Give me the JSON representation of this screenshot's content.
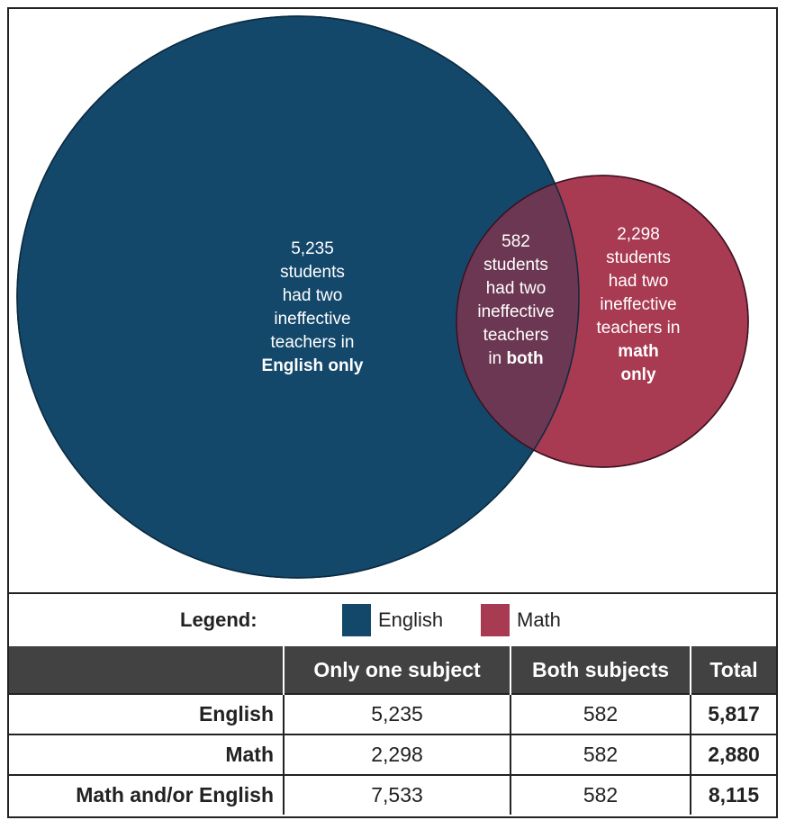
{
  "colors": {
    "english": "#13486b",
    "math": "#a83a52",
    "overlap": "#6c3752",
    "header_bg": "#424242"
  },
  "venn": {
    "english_only": {
      "count": "5,235",
      "line1": "students",
      "line2": "had two",
      "line3": "ineffective",
      "line4": "teachers in",
      "emphasis": "English only"
    },
    "both": {
      "count": "582",
      "line1": "students",
      "line2": "had two",
      "line3": "ineffective",
      "line4": "teachers",
      "prefix": "in",
      "emphasis": "both"
    },
    "math_only": {
      "count": "2,298",
      "line1": "students",
      "line2": "had two",
      "line3": "ineffective",
      "line4": "teachers in",
      "emphasis_line1": "math",
      "emphasis_line2": "only"
    }
  },
  "legend": {
    "label": "Legend:",
    "items": [
      {
        "label": "English",
        "icon": "square-swatch"
      },
      {
        "label": "Math",
        "icon": "square-swatch"
      }
    ]
  },
  "table": {
    "headers": [
      "",
      "Only one subject",
      "Both subjects",
      "Total"
    ],
    "rows": [
      {
        "label": "English",
        "only_one": "5,235",
        "both": "582",
        "total": "5,817",
        "total_color": "red"
      },
      {
        "label": "Math",
        "only_one": "2,298",
        "both": "582",
        "total": "2,880",
        "total_color": "blue"
      },
      {
        "label": "Math and/or English",
        "only_one": "7,533",
        "both": "582",
        "total": "8,115",
        "total_color": "black"
      }
    ]
  }
}
